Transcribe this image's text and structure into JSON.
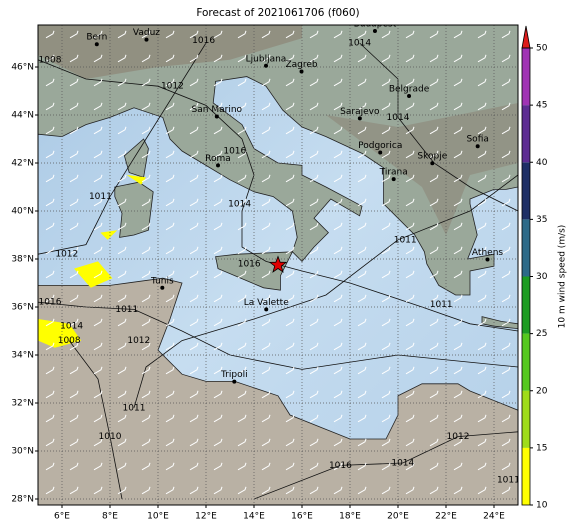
{
  "title": "Forecast of 2021061706 (f060)",
  "map": {
    "lonlim": [
      5,
      25
    ],
    "latlim": [
      27.75,
      47.75
    ],
    "xticks": [
      {
        "value": 6,
        "label": "6°E"
      },
      {
        "value": 8,
        "label": "8°E"
      },
      {
        "value": 10,
        "label": "10°E"
      },
      {
        "value": 12,
        "label": "12°E"
      },
      {
        "value": 14,
        "label": "14°E"
      },
      {
        "value": 16,
        "label": "16°E"
      },
      {
        "value": 18,
        "label": "18°E"
      },
      {
        "value": 20,
        "label": "20°E"
      },
      {
        "value": 22,
        "label": "22°E"
      },
      {
        "value": 24,
        "label": "24°E"
      }
    ],
    "yticks": [
      {
        "value": 28,
        "label": "28°N"
      },
      {
        "value": 30,
        "label": "30°N"
      },
      {
        "value": 32,
        "label": "32°N"
      },
      {
        "value": 34,
        "label": "34°N"
      },
      {
        "value": 36,
        "label": "36°N"
      },
      {
        "value": 38,
        "label": "38°N"
      },
      {
        "value": 40,
        "label": "40°N"
      },
      {
        "value": 42,
        "label": "42°N"
      },
      {
        "value": 44,
        "label": "44°N"
      },
      {
        "value": 46,
        "label": "46°N"
      }
    ],
    "grid": true,
    "cities": [
      {
        "name": "Bern",
        "lon": 7.45,
        "lat": 46.95
      },
      {
        "name": "Vaduz",
        "lon": 9.52,
        "lat": 47.14
      },
      {
        "name": "Budapest",
        "lon": 19.04,
        "lat": 47.5
      },
      {
        "name": "Ljubljana",
        "lon": 14.5,
        "lat": 46.05
      },
      {
        "name": "Zagreb",
        "lon": 15.98,
        "lat": 45.81
      },
      {
        "name": "San Marino",
        "lon": 12.45,
        "lat": 43.94
      },
      {
        "name": "Sarajevo",
        "lon": 18.41,
        "lat": 43.86
      },
      {
        "name": "Belgrade",
        "lon": 20.46,
        "lat": 44.79
      },
      {
        "name": "Roma",
        "lon": 12.5,
        "lat": 41.9
      },
      {
        "name": "Podgorica",
        "lon": 19.26,
        "lat": 42.44
      },
      {
        "name": "Sofia",
        "lon": 23.32,
        "lat": 42.7
      },
      {
        "name": "Skopje",
        "lon": 21.43,
        "lat": 41.99
      },
      {
        "name": "Tirana",
        "lon": 19.82,
        "lat": 41.33
      },
      {
        "name": "Athens",
        "lon": 23.73,
        "lat": 37.98
      },
      {
        "name": "Tunis",
        "lon": 10.18,
        "lat": 36.8
      },
      {
        "name": "La Valette",
        "lon": 14.51,
        "lat": 35.9
      },
      {
        "name": "Tripoli",
        "lon": 13.18,
        "lat": 32.89
      }
    ],
    "event": {
      "lon": 15,
      "lat": 37.75,
      "color": "#e00000"
    },
    "isobar_labels": [
      {
        "label": "1016",
        "lon": 11.9,
        "lat": 47.1
      },
      {
        "label": "1014",
        "lon": 18.4,
        "lat": 47.0
      },
      {
        "label": "1008",
        "lon": 5.5,
        "lat": 46.3
      },
      {
        "label": "1012",
        "lon": 10.6,
        "lat": 45.2
      },
      {
        "label": "1014",
        "lon": 20.0,
        "lat": 43.9
      },
      {
        "label": "1016",
        "lon": 13.2,
        "lat": 42.5
      },
      {
        "label": "1014",
        "lon": 13.4,
        "lat": 40.3
      },
      {
        "label": "1011",
        "lon": 7.6,
        "lat": 40.6
      },
      {
        "label": "1012",
        "lon": 6.2,
        "lat": 38.2
      },
      {
        "label": "1016",
        "lon": 13.8,
        "lat": 37.8
      },
      {
        "label": "1011",
        "lon": 20.3,
        "lat": 38.8
      },
      {
        "label": "1011",
        "lon": 21.8,
        "lat": 36.1
      },
      {
        "label": "1016",
        "lon": 5.5,
        "lat": 36.2
      },
      {
        "label": "1014",
        "lon": 6.4,
        "lat": 35.2
      },
      {
        "label": "1011",
        "lon": 8.7,
        "lat": 35.9
      },
      {
        "label": "1012",
        "lon": 9.2,
        "lat": 34.6
      },
      {
        "label": "1008",
        "lon": 6.3,
        "lat": 34.6
      },
      {
        "label": "1010",
        "lon": 8.0,
        "lat": 30.6
      },
      {
        "label": "1011",
        "lon": 9.0,
        "lat": 31.8
      },
      {
        "label": "1016",
        "lon": 17.6,
        "lat": 29.4
      },
      {
        "label": "1014",
        "lon": 20.2,
        "lat": 29.5
      },
      {
        "label": "1012",
        "lon": 22.5,
        "lat": 30.6
      },
      {
        "label": "1011",
        "lon": 24.6,
        "lat": 28.8
      }
    ]
  },
  "colorbar": {
    "label": "10 m wind speed (m/s)",
    "lim": [
      10,
      50
    ],
    "ticks": [
      10,
      15,
      20,
      25,
      30,
      35,
      40,
      45,
      50
    ],
    "colors": [
      "#ffff00",
      "#9fdc1a",
      "#55c81e",
      "#1c9c22",
      "#2c6a88",
      "#1e2f66",
      "#5d2c92",
      "#a033b4"
    ],
    "extend_color": "#dd1c1c"
  }
}
